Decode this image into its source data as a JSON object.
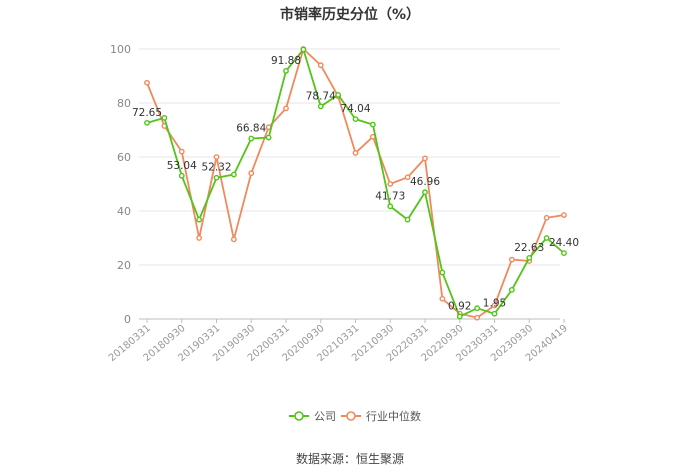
{
  "source_text": "数据来源：恒生聚源",
  "chart_data": {
    "type": "line",
    "title": "市销率历史分位（%）",
    "xlabel": "",
    "ylabel": "",
    "ylim": [
      0,
      100
    ],
    "yticks": [
      0,
      20,
      40,
      60,
      80,
      100
    ],
    "grid": true,
    "legend_position": "bottom",
    "x_tick_labels": [
      "20180331",
      "20180930",
      "20190331",
      "20190930",
      "20200331",
      "20200930",
      "20210331",
      "20210930",
      "20220331",
      "20220930",
      "20230331",
      "20230930",
      "20240419"
    ],
    "x_tick_indices": [
      0,
      2,
      4,
      6,
      8,
      10,
      12,
      14,
      16,
      18,
      20,
      22,
      24
    ],
    "x_count": 25,
    "series": [
      {
        "name": "公司",
        "color": "#52c41a",
        "values": [
          72.65,
          74.5,
          53.04,
          36.8,
          52.32,
          53.5,
          66.84,
          67.2,
          91.88,
          99.8,
          78.74,
          83.0,
          74.04,
          72.0,
          41.73,
          36.8,
          46.96,
          17.2,
          0.92,
          4.0,
          1.95,
          10.8,
          22.63,
          30.0,
          24.4
        ],
        "labels": {
          "0": "72.65",
          "2": "53.04",
          "4": "52.32",
          "6": "66.84",
          "8": "91.88",
          "10": "78.74",
          "12": "74.04",
          "14": "41.73",
          "16": "46.96",
          "18": "0.92",
          "20": "1.95",
          "22": "22.63",
          "24": "24.40"
        }
      },
      {
        "name": "行业中位数",
        "color": "#f08a5d",
        "values": [
          87.5,
          71.5,
          62.0,
          30.0,
          60.0,
          29.5,
          54.0,
          71.0,
          78.0,
          100.0,
          94.0,
          82.5,
          61.5,
          67.5,
          50.0,
          52.5,
          59.5,
          7.5,
          2.0,
          0.5,
          5.0,
          22.0,
          21.5,
          37.5,
          38.5
        ]
      }
    ]
  }
}
